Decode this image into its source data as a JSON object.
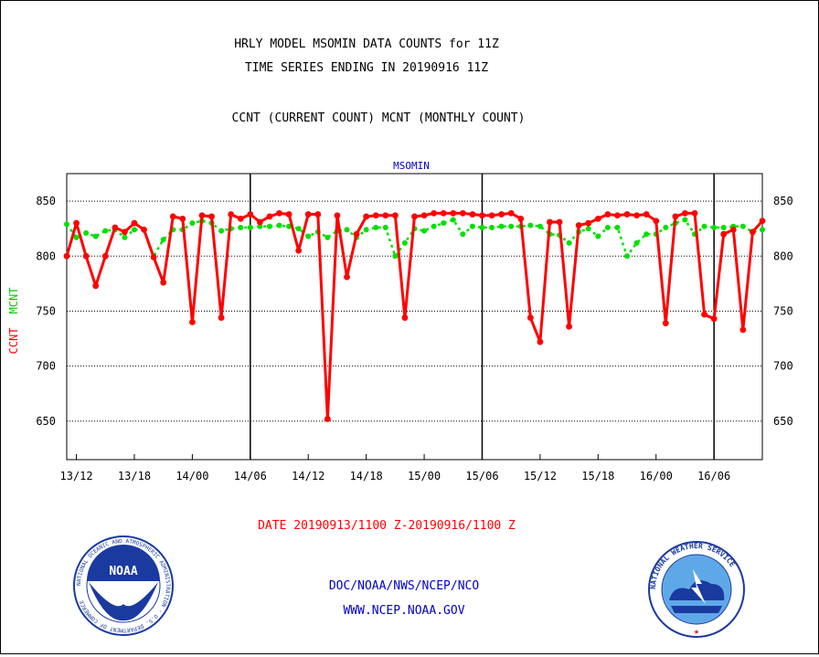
{
  "chart_data": {
    "type": "line",
    "title_lines": [
      "HRLY MODEL MSOMIN DATA COUNTS for 11Z",
      "TIME SERIES ENDING IN 20190916 11Z",
      "CCNT (CURRENT COUNT) MCNT (MONTHLY COUNT)"
    ],
    "subtitle": "MSOMIN",
    "ylabel_parts": [
      "CCNT",
      "MCNT"
    ],
    "xlabel": "DATE 20190913/1100 Z-20190916/1100 Z",
    "ylim": [
      615,
      875
    ],
    "yticks": [
      650,
      700,
      750,
      800,
      850
    ],
    "xlim": [
      0,
      72
    ],
    "xticks": [
      {
        "x": 1,
        "label": "13/12"
      },
      {
        "x": 7,
        "label": "13/18"
      },
      {
        "x": 13,
        "label": "14/00"
      },
      {
        "x": 19,
        "label": "14/06"
      },
      {
        "x": 25,
        "label": "14/12"
      },
      {
        "x": 31,
        "label": "14/18"
      },
      {
        "x": 37,
        "label": "15/00"
      },
      {
        "x": 43,
        "label": "15/06"
      },
      {
        "x": 49,
        "label": "15/12"
      },
      {
        "x": 55,
        "label": "15/18"
      },
      {
        "x": 61,
        "label": "16/00"
      },
      {
        "x": 67,
        "label": "16/06"
      }
    ],
    "day_boundaries": [
      19,
      43,
      67
    ],
    "grid": "dotted-horizontal",
    "series": [
      {
        "name": "CCNT",
        "color": "#ff0000",
        "values": [
          800,
          830,
          800,
          773,
          800,
          826,
          822,
          830,
          824,
          799,
          776,
          836,
          834,
          740,
          837,
          836,
          744,
          838,
          834,
          838,
          831,
          836,
          839,
          838,
          805,
          838,
          838,
          652,
          837,
          781,
          820,
          836,
          837,
          837,
          837,
          744,
          836,
          837,
          839,
          839,
          839,
          839,
          838,
          837,
          837,
          838,
          839,
          834,
          744,
          722,
          831,
          831,
          736,
          828,
          830,
          834,
          838,
          837,
          838,
          837,
          838,
          832,
          739,
          836,
          839,
          839,
          747,
          743,
          820,
          824,
          733,
          822,
          832
        ]
      },
      {
        "name": "MCNT",
        "color": "#00e000",
        "values": [
          829,
          817,
          821,
          818,
          823,
          824,
          817,
          824,
          824,
          800,
          815,
          824,
          824,
          830,
          832,
          830,
          823,
          825,
          826,
          826,
          827,
          827,
          828,
          827,
          825,
          818,
          822,
          817,
          823,
          824,
          817,
          824,
          826,
          826,
          800,
          812,
          825,
          823,
          827,
          830,
          833,
          820,
          827,
          826,
          826,
          827,
          827,
          827,
          828,
          827,
          820,
          819,
          812,
          822,
          825,
          818,
          826,
          826,
          800,
          812,
          820,
          820,
          826,
          830,
          833,
          820,
          827,
          826,
          826,
          827,
          827,
          822,
          824
        ]
      }
    ]
  },
  "footer": {
    "line1": "DOC/NOAA/NWS/NCEP/NCO",
    "line2": "WWW.NCEP.NOAA.GOV",
    "noaa_ring_text": "NATIONAL OCEANIC AND ATMOSPHERIC ADMINISTRATION · U.S. DEPARTMENT OF COMMERCE",
    "noaa_center": "NOAA",
    "nws_ring_text": "NATIONAL WEATHER SERVICE"
  },
  "colors": {
    "ccnt": "#ff0000",
    "mcnt": "#00e000",
    "text": "#000000",
    "blue_text": "#0000cc",
    "frame": "#000000"
  }
}
